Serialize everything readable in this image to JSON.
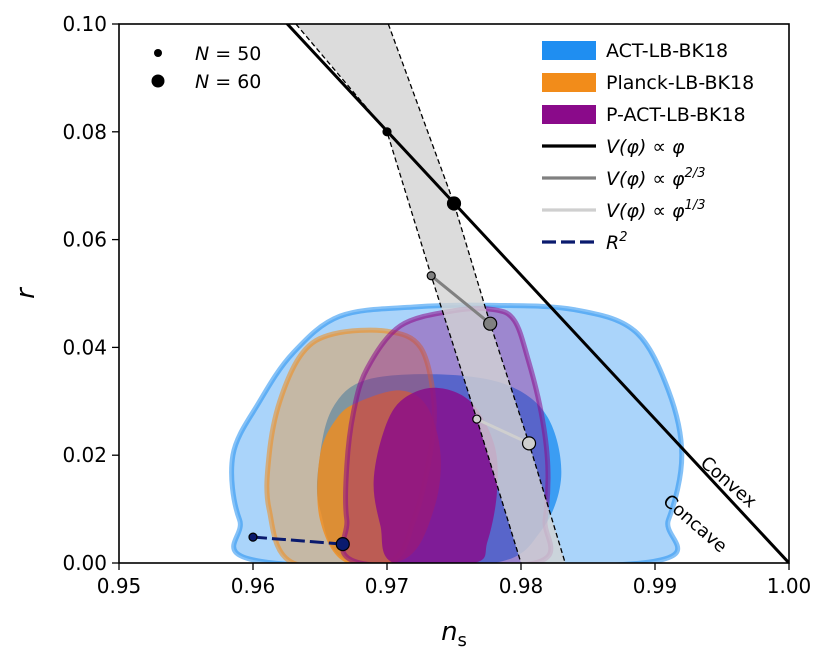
{
  "chart_data": {
    "type": "contour",
    "xlabel": "n",
    "xlabel_sub": "s",
    "ylabel": "r",
    "xlim": [
      0.95,
      1.0
    ],
    "ylim": [
      0.0,
      0.1
    ],
    "xticks": [
      {
        "value": 0.95,
        "label": "0.95"
      },
      {
        "value": 0.96,
        "label": "0.96"
      },
      {
        "value": 0.97,
        "label": "0.97"
      },
      {
        "value": 0.98,
        "label": "0.98"
      },
      {
        "value": 0.99,
        "label": "0.99"
      },
      {
        "value": 1.0,
        "label": "1.00"
      }
    ],
    "yticks": [
      {
        "value": 0.0,
        "label": "0.00"
      },
      {
        "value": 0.02,
        "label": "0.02"
      },
      {
        "value": 0.04,
        "label": "0.04"
      },
      {
        "value": 0.06,
        "label": "0.06"
      },
      {
        "value": 0.08,
        "label": "0.08"
      },
      {
        "value": 0.1,
        "label": "0.10"
      }
    ],
    "contours": [
      {
        "name": "ACT-LB-BK18",
        "color": "#1f8ef1",
        "outer": [
          [
            0.9665,
            0.0458
          ],
          [
            0.972,
            0.0475
          ],
          [
            0.978,
            0.0478
          ],
          [
            0.984,
            0.047
          ],
          [
            0.9885,
            0.043
          ],
          [
            0.991,
            0.032
          ],
          [
            0.992,
            0.02
          ],
          [
            0.991,
            0.008
          ],
          [
            0.989,
            0.0
          ],
          [
            0.9615,
            0.0
          ],
          [
            0.959,
            0.008
          ],
          [
            0.9585,
            0.02
          ],
          [
            0.9605,
            0.03
          ],
          [
            0.963,
            0.039
          ]
        ],
        "inner": [
          [
            0.9685,
            0.034
          ],
          [
            0.974,
            0.035
          ],
          [
            0.979,
            0.033
          ],
          [
            0.982,
            0.027
          ],
          [
            0.983,
            0.016
          ],
          [
            0.9815,
            0.006
          ],
          [
            0.978,
            0.0
          ],
          [
            0.9675,
            0.0
          ],
          [
            0.965,
            0.01
          ],
          [
            0.965,
            0.02
          ],
          [
            0.966,
            0.029
          ]
        ]
      },
      {
        "name": "Planck-LB-BK18",
        "color": "#f28c1a",
        "outer": [
          [
            0.966,
            0.0425
          ],
          [
            0.97,
            0.043
          ],
          [
            0.9725,
            0.04
          ],
          [
            0.9735,
            0.03
          ],
          [
            0.9732,
            0.02
          ],
          [
            0.972,
            0.008
          ],
          [
            0.97,
            0.0
          ],
          [
            0.963,
            0.0
          ],
          [
            0.9612,
            0.01
          ],
          [
            0.9612,
            0.02
          ],
          [
            0.962,
            0.03
          ],
          [
            0.9637,
            0.039
          ]
        ],
        "inner": [
          [
            0.968,
            0.03
          ],
          [
            0.971,
            0.032
          ],
          [
            0.973,
            0.029
          ],
          [
            0.974,
            0.02
          ],
          [
            0.9735,
            0.01
          ],
          [
            0.9715,
            0.001
          ],
          [
            0.967,
            0.0
          ],
          [
            0.965,
            0.008
          ],
          [
            0.965,
            0.02
          ],
          [
            0.9663,
            0.027
          ]
        ]
      },
      {
        "name": "P-ACT-LB-BK18",
        "color": "#8a0a8a",
        "outer": [
          [
            0.971,
            0.044
          ],
          [
            0.975,
            0.0468
          ],
          [
            0.978,
            0.047
          ],
          [
            0.9795,
            0.045
          ],
          [
            0.9805,
            0.038
          ],
          [
            0.9815,
            0.028
          ],
          [
            0.982,
            0.018
          ],
          [
            0.9818,
            0.008
          ],
          [
            0.981,
            0.0
          ],
          [
            0.968,
            0.0
          ],
          [
            0.967,
            0.008
          ],
          [
            0.967,
            0.018
          ],
          [
            0.9675,
            0.028
          ],
          [
            0.9685,
            0.036
          ]
        ],
        "inner": [
          [
            0.971,
            0.03
          ],
          [
            0.9735,
            0.0325
          ],
          [
            0.9762,
            0.03
          ],
          [
            0.978,
            0.022
          ],
          [
            0.9782,
            0.013
          ],
          [
            0.9775,
            0.004
          ],
          [
            0.9765,
            0.0
          ],
          [
            0.9705,
            0.0
          ],
          [
            0.9695,
            0.007
          ],
          [
            0.969,
            0.015
          ],
          [
            0.9697,
            0.024
          ]
        ]
      }
    ],
    "lines": [
      {
        "name": "V(φ) ∝ φ",
        "color": "#000000",
        "x": [
          0.962,
          1.0
        ],
        "y": [
          0.1015,
          0.0
        ]
      },
      {
        "name": "V(φ) ∝ φ^{2/3}",
        "color": "#808080",
        "x": [
          0.9733,
          0.9777
        ],
        "y": [
          0.0533,
          0.0444
        ]
      },
      {
        "name": "V(φ) ∝ φ^{1/3}",
        "color": "#cfcfcf",
        "x": [
          0.9767,
          0.9806
        ],
        "y": [
          0.0267,
          0.0222
        ]
      },
      {
        "name": "R^2",
        "color": "#0a1a6e",
        "dashed": true,
        "x": [
          0.96,
          0.9667
        ],
        "y": [
          0.0048,
          0.0035
        ]
      }
    ],
    "band": {
      "color": "#d3d3d3",
      "left": [
        [
          0.9632,
          0.1
        ],
        [
          0.97,
          0.08
        ],
        [
          0.9733,
          0.0533
        ],
        [
          0.9767,
          0.0267
        ],
        [
          0.98,
          0.0
        ]
      ],
      "right": [
        [
          0.9701,
          0.1
        ],
        [
          0.975,
          0.0667
        ],
        [
          0.9777,
          0.0444
        ],
        [
          0.9806,
          0.0222
        ],
        [
          0.9833,
          0.0
        ]
      ]
    },
    "points": [
      {
        "n": "50",
        "line": "V(φ) ∝ φ",
        "x": 0.97,
        "y": 0.08
      },
      {
        "n": "60",
        "line": "V(φ) ∝ φ",
        "x": 0.975,
        "y": 0.0667
      },
      {
        "n": "50",
        "line": "V(φ) ∝ φ^{2/3}",
        "x": 0.9733,
        "y": 0.0533
      },
      {
        "n": "60",
        "line": "V(φ) ∝ φ^{2/3}",
        "x": 0.9777,
        "y": 0.0444
      },
      {
        "n": "50",
        "line": "V(φ) ∝ φ^{1/3}",
        "x": 0.9767,
        "y": 0.0267
      },
      {
        "n": "60",
        "line": "V(φ) ∝ φ^{1/3}",
        "x": 0.9806,
        "y": 0.0222
      },
      {
        "n": "50",
        "line": "R^2",
        "x": 0.96,
        "y": 0.0048
      },
      {
        "n": "60",
        "line": "R^2",
        "x": 0.9667,
        "y": 0.0035
      }
    ],
    "annotations": [
      {
        "text": "Convex",
        "x": 0.9952,
        "y": 0.0142,
        "angle": 41
      },
      {
        "text": "Concave",
        "x": 0.9927,
        "y": 0.0065,
        "angle": 41
      }
    ],
    "legend_markers": {
      "position": "top-left",
      "items": [
        {
          "label_var": "N",
          "label_eq": " = 50",
          "size": "small"
        },
        {
          "label_var": "N",
          "label_eq": " = 60",
          "size": "large"
        }
      ]
    },
    "legend": {
      "position": "top-right",
      "items": [
        {
          "label": "ACT-LB-BK18",
          "color": "#1f8ef1",
          "kind": "patch"
        },
        {
          "label": "Planck-LB-BK18",
          "color": "#f28c1a",
          "kind": "patch"
        },
        {
          "label": "P-ACT-LB-BK18",
          "color": "#8a0a8a",
          "kind": "patch"
        },
        {
          "label": "V(φ) ∝ φ",
          "base": "V(φ) ∝ φ",
          "sup": "",
          "color": "#000000",
          "kind": "line"
        },
        {
          "label": "V(φ) ∝ φ^{2/3}",
          "base": "V(φ) ∝ φ",
          "sup": "2/3",
          "color": "#808080",
          "kind": "line"
        },
        {
          "label": "V(φ) ∝ φ^{1/3}",
          "base": "V(φ) ∝ φ",
          "sup": "1/3",
          "color": "#cfcfcf",
          "kind": "line"
        },
        {
          "label": "R^2",
          "base": "R",
          "sup": "2",
          "color": "#0a1a6e",
          "kind": "dashed"
        }
      ]
    }
  }
}
